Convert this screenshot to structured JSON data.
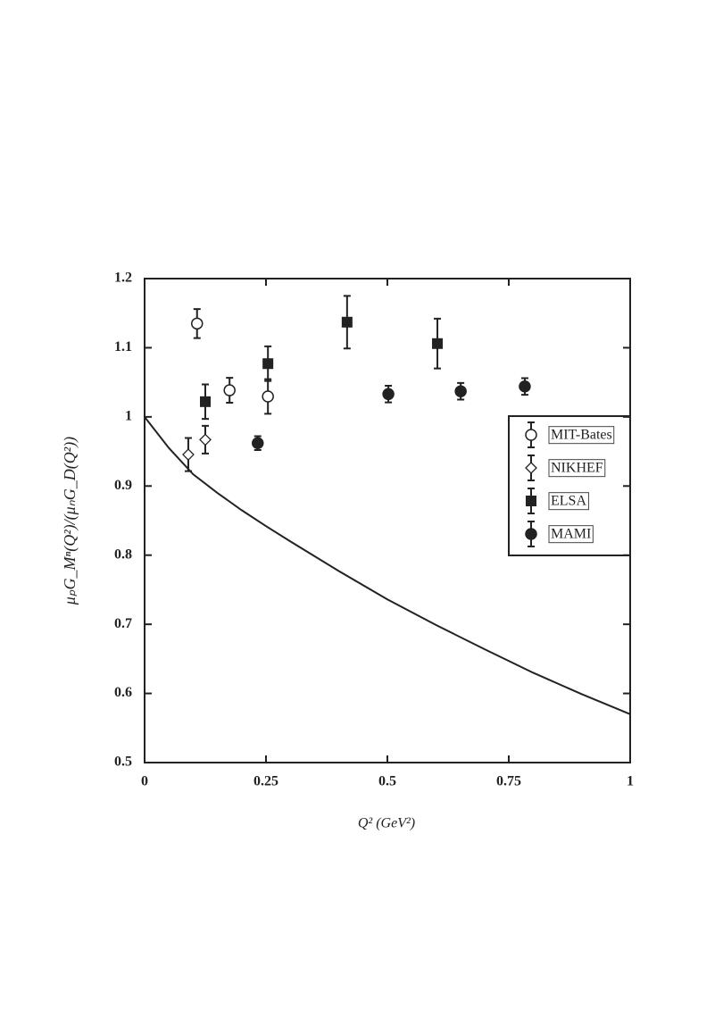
{
  "chart_data": {
    "type": "scatter",
    "x_label": "Q² (GeV²)",
    "y_label": "μₚG_Mⁿ(Q²)/(μₙG_D(Q²))",
    "xlim": [
      0,
      1
    ],
    "xticks": [
      0,
      0.25,
      0.5,
      0.75,
      1
    ],
    "ylim": [
      0.5,
      1.2
    ],
    "yticks": [
      0.5,
      0.6,
      0.7,
      0.8,
      0.9,
      1,
      1.1,
      1.2
    ],
    "legend": "right",
    "series": [
      {
        "name": "MIT-Bates",
        "marker": "open-circle",
        "color": "#222",
        "x": [
          0.108,
          0.175,
          0.254
        ],
        "values": [
          1.135,
          1.0385,
          1.0295
        ],
        "errors": [
          0.021,
          0.018,
          0.025
        ]
      },
      {
        "name": "NIKHEF",
        "marker": "open-diamond",
        "color": "#222",
        "x": [
          0.09,
          0.125
        ],
        "values": [
          0.9455,
          0.967
        ],
        "errors": [
          0.024,
          0.02
        ]
      },
      {
        "name": "ELSA",
        "marker": "square",
        "color": "#222",
        "x": [
          0.125,
          0.254,
          0.417,
          0.603
        ],
        "values": [
          1.022,
          1.077,
          1.137,
          1.106
        ],
        "errors": [
          0.025,
          0.025,
          0.038,
          0.036
        ]
      },
      {
        "name": "MAMI",
        "marker": "circle",
        "color": "#222",
        "x": [
          0.233,
          0.502,
          0.651,
          0.783
        ],
        "values": [
          0.962,
          1.033,
          1.037,
          1.044
        ],
        "errors": [
          0.01,
          0.012,
          0.012,
          0.012
        ]
      }
    ],
    "curve": {
      "color": "#222",
      "x": [
        0,
        0.05,
        0.1,
        0.15,
        0.2,
        0.25,
        0.3,
        0.4,
        0.5,
        0.6,
        0.7,
        0.8,
        0.9,
        1.0
      ],
      "values": [
        1,
        0.955,
        0.917,
        0.89,
        0.865,
        0.842,
        0.82,
        0.777,
        0.736,
        0.699,
        0.664,
        0.63,
        0.599,
        0.57
      ]
    }
  }
}
